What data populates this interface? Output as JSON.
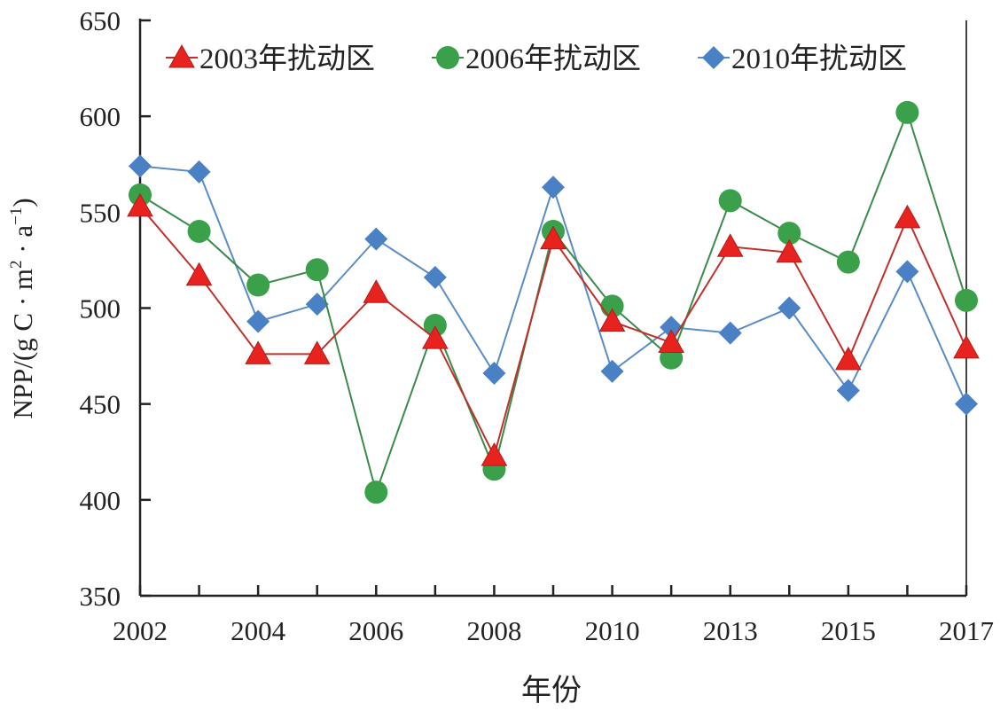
{
  "chart_data": {
    "type": "line",
    "title": "",
    "xlabel": "年份",
    "ylabel": "NPP/(g C · m² · a⁻¹)",
    "ylabel_parts": {
      "main": "NPP/(g C · m",
      "sup1": "2",
      "mid": " · a",
      "sup2": "−1",
      "end": ")"
    },
    "ylim": [
      350,
      650
    ],
    "yticks": [
      350,
      400,
      450,
      500,
      550,
      600,
      650
    ],
    "categories": [
      "2002",
      "2003",
      "2004",
      "2005",
      "2006",
      "2007",
      "2008",
      "2009",
      "2010",
      "2011",
      "2013",
      "2014",
      "2015",
      "2016",
      "2017"
    ],
    "xtick_labels": [
      "2002",
      "2004",
      "2006",
      "2008",
      "2010",
      "2013",
      "2015",
      "2017"
    ],
    "xtick_label_indices": [
      0,
      2,
      4,
      6,
      8,
      10,
      12,
      14
    ],
    "legend_position": "top",
    "grid": false,
    "series": [
      {
        "name": "2003年扰动区",
        "marker": "triangle",
        "color": "#e8231f",
        "line_color": "#c0302a",
        "values": [
          553,
          517,
          476,
          476,
          508,
          484,
          423,
          536,
          493,
          482,
          532,
          529,
          473,
          547,
          479
        ]
      },
      {
        "name": "2006年扰动区",
        "marker": "circle",
        "color": "#3aa04a",
        "line_color": "#3a8a4a",
        "values": [
          559,
          540,
          512,
          520,
          404,
          491,
          416,
          540,
          501,
          474,
          556,
          539,
          524,
          602,
          504
        ]
      },
      {
        "name": "2010年扰动区",
        "marker": "diamond",
        "color": "#4a80c4",
        "line_color": "#5a8cc4",
        "values": [
          574,
          571,
          493,
          502,
          536,
          516,
          466,
          563,
          467,
          490,
          487,
          500,
          457,
          519,
          450
        ]
      }
    ]
  }
}
